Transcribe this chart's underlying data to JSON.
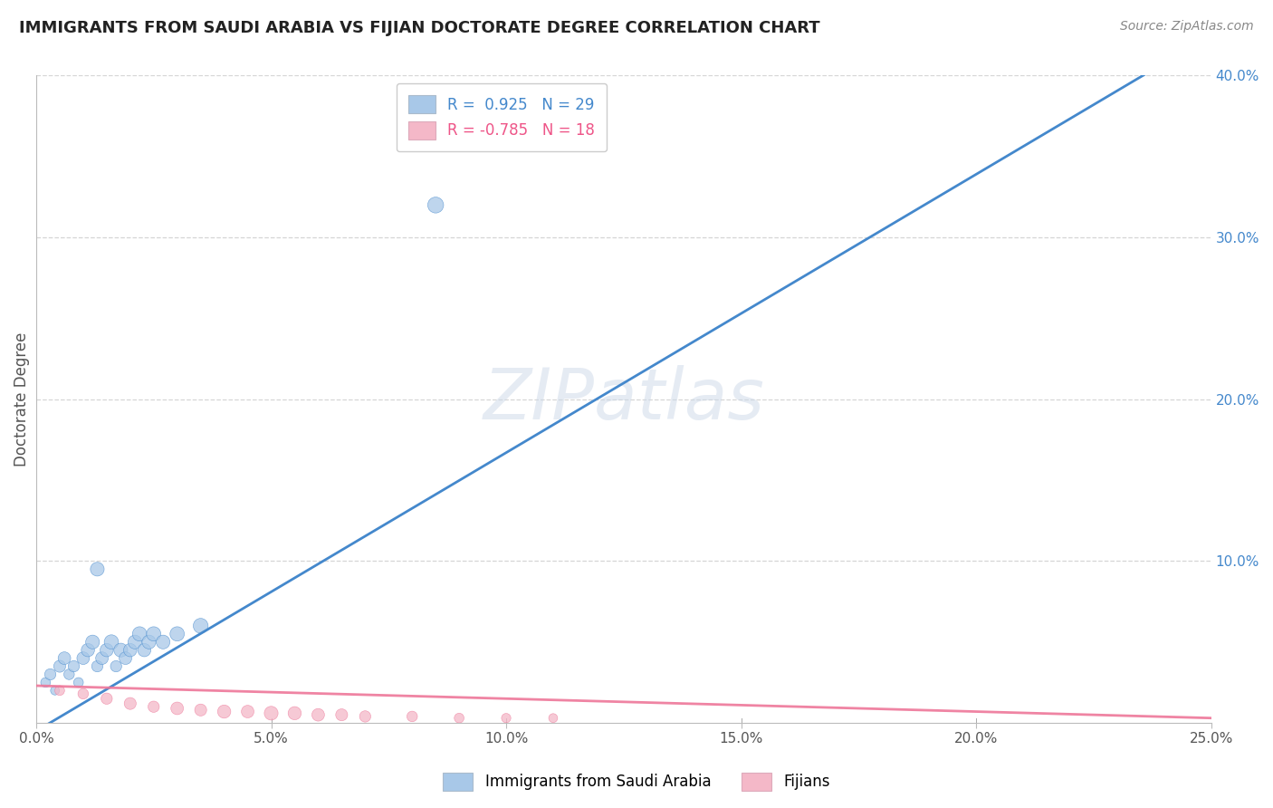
{
  "title": "IMMIGRANTS FROM SAUDI ARABIA VS FIJIAN DOCTORATE DEGREE CORRELATION CHART",
  "source_text": "Source: ZipAtlas.com",
  "ylabel": "Doctorate Degree",
  "xlim": [
    0.0,
    0.25
  ],
  "ylim": [
    0.0,
    0.4
  ],
  "xticks": [
    0.0,
    0.05,
    0.1,
    0.15,
    0.2,
    0.25
  ],
  "xtick_labels": [
    "0.0%",
    "5.0%",
    "10.0%",
    "15.0%",
    "20.0%",
    "25.0%"
  ],
  "yticks": [
    0.0,
    0.1,
    0.2,
    0.3,
    0.4
  ],
  "ytick_labels": [
    "",
    "10.0%",
    "20.0%",
    "30.0%",
    "40.0%"
  ],
  "blue_color": "#a8c8e8",
  "pink_color": "#f4b8c8",
  "blue_line_color": "#4488cc",
  "pink_line_color": "#ee7799",
  "watermark": "ZIPatlas",
  "background_color": "#ffffff",
  "grid_color": "#cccccc",
  "blue_line_x": [
    0.0,
    0.25
  ],
  "blue_line_y": [
    -0.005,
    0.425
  ],
  "pink_line_x": [
    0.0,
    0.25
  ],
  "pink_line_y": [
    0.023,
    0.003
  ],
  "blue_scatter_x": [
    0.002,
    0.003,
    0.004,
    0.005,
    0.006,
    0.007,
    0.008,
    0.009,
    0.01,
    0.011,
    0.012,
    0.013,
    0.014,
    0.015,
    0.016,
    0.017,
    0.018,
    0.019,
    0.02,
    0.021,
    0.022,
    0.023,
    0.024,
    0.025,
    0.027,
    0.03,
    0.035,
    0.013,
    0.085
  ],
  "blue_scatter_y": [
    0.025,
    0.03,
    0.02,
    0.035,
    0.04,
    0.03,
    0.035,
    0.025,
    0.04,
    0.045,
    0.05,
    0.035,
    0.04,
    0.045,
    0.05,
    0.035,
    0.045,
    0.04,
    0.045,
    0.05,
    0.055,
    0.045,
    0.05,
    0.055,
    0.05,
    0.055,
    0.06,
    0.095,
    0.32
  ],
  "blue_scatter_sizes": [
    60,
    80,
    50,
    90,
    100,
    70,
    80,
    60,
    100,
    110,
    120,
    80,
    100,
    110,
    130,
    80,
    120,
    100,
    110,
    120,
    130,
    110,
    120,
    130,
    120,
    130,
    140,
    120,
    160
  ],
  "pink_scatter_x": [
    0.005,
    0.01,
    0.015,
    0.02,
    0.025,
    0.03,
    0.035,
    0.04,
    0.045,
    0.05,
    0.055,
    0.06,
    0.065,
    0.07,
    0.08,
    0.09,
    0.1,
    0.11
  ],
  "pink_scatter_y": [
    0.02,
    0.018,
    0.015,
    0.012,
    0.01,
    0.009,
    0.008,
    0.007,
    0.007,
    0.006,
    0.006,
    0.005,
    0.005,
    0.004,
    0.004,
    0.003,
    0.003,
    0.003
  ],
  "pink_scatter_sizes": [
    60,
    70,
    80,
    90,
    80,
    100,
    90,
    110,
    100,
    120,
    110,
    100,
    90,
    80,
    70,
    60,
    55,
    50
  ]
}
